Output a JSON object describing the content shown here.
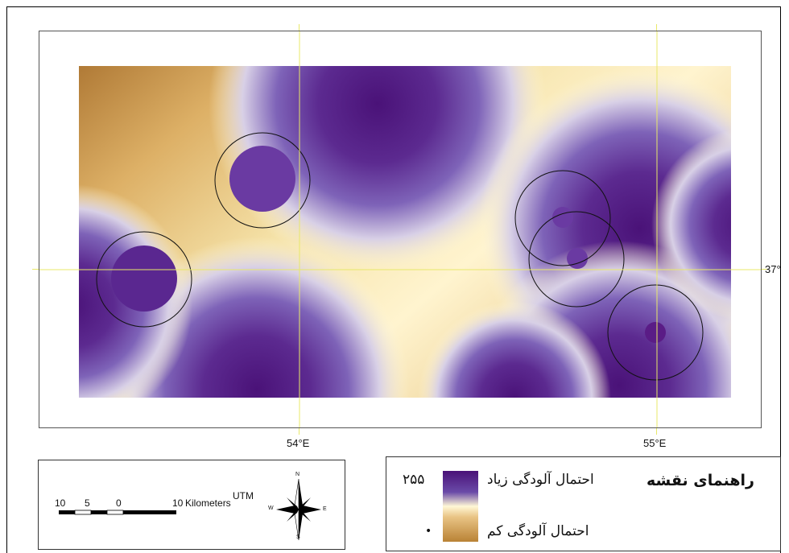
{
  "map": {
    "lon_labels": [
      {
        "text": "54°E",
        "lon": 54
      },
      {
        "text": "55°E",
        "lon": 55
      }
    ],
    "lat_labels": [
      {
        "text": "37°",
        "lat": 37
      }
    ],
    "raster_colors": {
      "high": "#5a1c86",
      "mid": "#8a6fc0",
      "low_mid": "#fff7d0",
      "low": "#c98b3c"
    }
  },
  "scale_bar": {
    "ticks": [
      "10",
      "5",
      "0",
      "10"
    ],
    "unit": "Kilometers",
    "projection": "UTM"
  },
  "north_arrow": {
    "icon": "compass-rose-icon",
    "n": "N",
    "s": "S",
    "e": "E",
    "w": "W"
  },
  "legend": {
    "title": "راهنمای نقشه",
    "high_label": "احتمال آلودگی زیاد",
    "low_label": "احتمال آلودگی کم",
    "high_value": "۲۵۵",
    "low_value": "•"
  }
}
